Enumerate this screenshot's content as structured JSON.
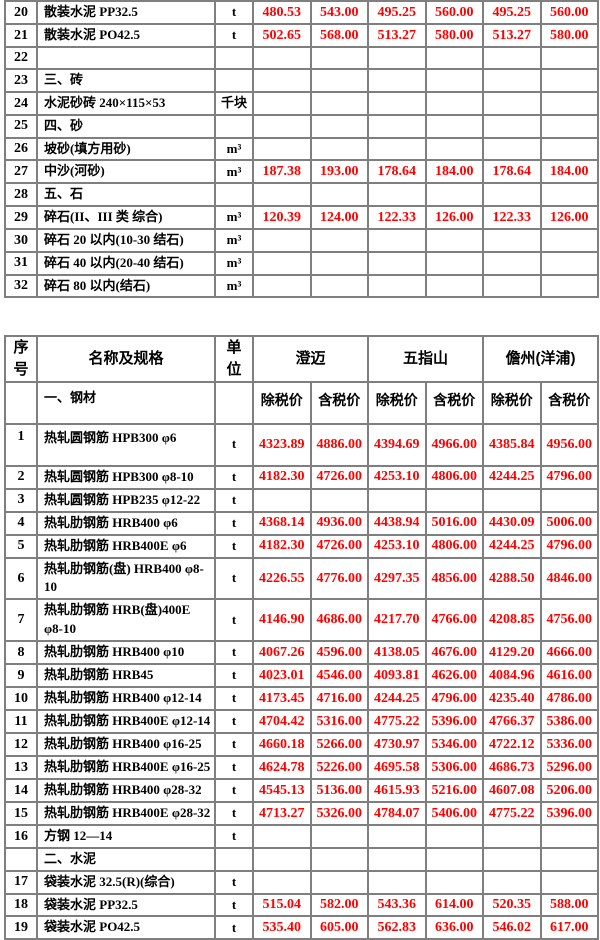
{
  "colors": {
    "price_red": "#ff0000",
    "text_black": "#000000",
    "grid_border_gray": "#7f7f7f",
    "page_background": "#ffffff"
  },
  "top_table": {
    "rows": [
      {
        "no": "20",
        "name": "散装水泥 PP32.5",
        "unit": "t",
        "values": [
          "480.53",
          "543.00",
          "495.25",
          "560.00",
          "495.25",
          "560.00"
        ]
      },
      {
        "no": "21",
        "name": "散装水泥 PO42.5",
        "unit": "t",
        "values": [
          "502.65",
          "568.00",
          "513.27",
          "580.00",
          "513.27",
          "580.00"
        ]
      },
      {
        "no": "22",
        "name": "",
        "unit": "",
        "values": []
      },
      {
        "no": "23",
        "name": "三、砖",
        "unit": "",
        "values": []
      },
      {
        "no": "24",
        "name": "水泥砂砖 240×115×53",
        "unit": "千块",
        "values": []
      },
      {
        "no": "25",
        "name": "四、砂",
        "unit": "",
        "values": []
      },
      {
        "no": "26",
        "name": "坡砂(填方用砂)",
        "unit": "m³",
        "values": []
      },
      {
        "no": "27",
        "name": "中沙(河砂)",
        "unit": "m³",
        "values": [
          "187.38",
          "193.00",
          "178.64",
          "184.00",
          "178.64",
          "184.00"
        ]
      },
      {
        "no": "28",
        "name": "五、石",
        "unit": "",
        "values": []
      },
      {
        "no": "29",
        "name": "碎石(II、III 类 综合)",
        "unit": "m³",
        "values": [
          "120.39",
          "124.00",
          "122.33",
          "126.00",
          "122.33",
          "126.00"
        ]
      },
      {
        "no": "30",
        "name": "碎石 20 以内(10-30 结石)",
        "unit": "m³",
        "values": []
      },
      {
        "no": "31",
        "name": "碎石 40 以内(20-40 结石)",
        "unit": "m³",
        "values": []
      },
      {
        "no": "32",
        "name": "碎石 80 以内(结石)",
        "unit": "m³",
        "values": []
      }
    ]
  },
  "main_table": {
    "header": {
      "no": "序号",
      "name": "名称及规格",
      "unit": "单位",
      "cities": [
        "澄迈",
        "五指山",
        "儋州(洋浦)"
      ],
      "section_steel": "一、钢材",
      "price_labels": [
        "除税价",
        "含税价",
        "除税价",
        "含税价",
        "除税价",
        "含税价"
      ]
    },
    "rows": [
      {
        "no": "1",
        "name": "热轧圆钢筋 HPB300 φ6",
        "unit": "t",
        "values": [
          "4323.89",
          "4886.00",
          "4394.69",
          "4966.00",
          "4385.84",
          "4956.00"
        ]
      },
      {
        "no": "2",
        "name": "热轧圆钢筋 HPB300 φ8-10",
        "unit": "t",
        "values": [
          "4182.30",
          "4726.00",
          "4253.10",
          "4806.00",
          "4244.25",
          "4796.00"
        ]
      },
      {
        "no": "3",
        "name": "热轧圆钢筋 HPB235 φ12-22",
        "unit": "t",
        "values": []
      },
      {
        "no": "4",
        "name": "热轧肋钢筋 HRB400 φ6",
        "unit": "t",
        "values": [
          "4368.14",
          "4936.00",
          "4438.94",
          "5016.00",
          "4430.09",
          "5006.00"
        ]
      },
      {
        "no": "5",
        "name": "热轧肋钢筋 HRB400E φ6",
        "unit": "t",
        "values": [
          "4182.30",
          "4726.00",
          "4253.10",
          "4806.00",
          "4244.25",
          "4796.00"
        ]
      },
      {
        "no": "6",
        "name": "热轧肋钢筋(盘) HRB400 φ8-10",
        "unit": "t",
        "values": [
          "4226.55",
          "4776.00",
          "4297.35",
          "4856.00",
          "4288.50",
          "4846.00"
        ]
      },
      {
        "no": "7",
        "name": "热轧肋钢筋 HRB(盘)400E φ8-10",
        "unit": "t",
        "values": [
          "4146.90",
          "4686.00",
          "4217.70",
          "4766.00",
          "4208.85",
          "4756.00"
        ]
      },
      {
        "no": "8",
        "name": "热轧肋钢筋 HRB400 φ10",
        "unit": "t",
        "values": [
          "4067.26",
          "4596.00",
          "4138.05",
          "4676.00",
          "4129.20",
          "4666.00"
        ]
      },
      {
        "no": "9",
        "name": "热轧肋钢筋 HRB45",
        "unit": "t",
        "values": [
          "4023.01",
          "4546.00",
          "4093.81",
          "4626.00",
          "4084.96",
          "4616.00"
        ]
      },
      {
        "no": "10",
        "name": "热轧肋钢筋 HRB400 φ12-14",
        "unit": "t",
        "values": [
          "4173.45",
          "4716.00",
          "4244.25",
          "4796.00",
          "4235.40",
          "4786.00"
        ]
      },
      {
        "no": "11",
        "name": "热轧肋钢筋 HRB400E φ12-14",
        "unit": "t",
        "values": [
          "4704.42",
          "5316.00",
          "4775.22",
          "5396.00",
          "4766.37",
          "5386.00"
        ]
      },
      {
        "no": "12",
        "name": "热轧肋钢筋 HRB400 φ16-25",
        "unit": "t",
        "values": [
          "4660.18",
          "5266.00",
          "4730.97",
          "5346.00",
          "4722.12",
          "5336.00"
        ]
      },
      {
        "no": "13",
        "name": "热轧肋钢筋 HRB400E φ16-25",
        "unit": "t",
        "values": [
          "4624.78",
          "5226.00",
          "4695.58",
          "5306.00",
          "4686.73",
          "5296.00"
        ]
      },
      {
        "no": "14",
        "name": "热轧肋钢筋 HRB400 φ28-32",
        "unit": "t",
        "values": [
          "4545.13",
          "5136.00",
          "4615.93",
          "5216.00",
          "4607.08",
          "5206.00"
        ]
      },
      {
        "no": "15",
        "name": "热轧肋钢筋 HRB400E φ28-32",
        "unit": "t",
        "values": [
          "4713.27",
          "5326.00",
          "4784.07",
          "5406.00",
          "4775.22",
          "5396.00"
        ]
      },
      {
        "no": "16",
        "name": "方钢 12—14",
        "unit": "t",
        "values": []
      },
      {
        "no": "",
        "name": "二、水泥",
        "unit": "",
        "values": []
      },
      {
        "no": "17",
        "name": "袋装水泥 32.5(R)(综合)",
        "unit": "t",
        "values": []
      },
      {
        "no": "18",
        "name": "袋装水泥 PP32.5",
        "unit": "t",
        "values": [
          "515.04",
          "582.00",
          "543.36",
          "614.00",
          "520.35",
          "588.00"
        ]
      },
      {
        "no": "19",
        "name": "袋装水泥 PO42.5",
        "unit": "t",
        "values": [
          "535.40",
          "605.00",
          "562.83",
          "636.00",
          "546.02",
          "617.00"
        ]
      }
    ]
  }
}
